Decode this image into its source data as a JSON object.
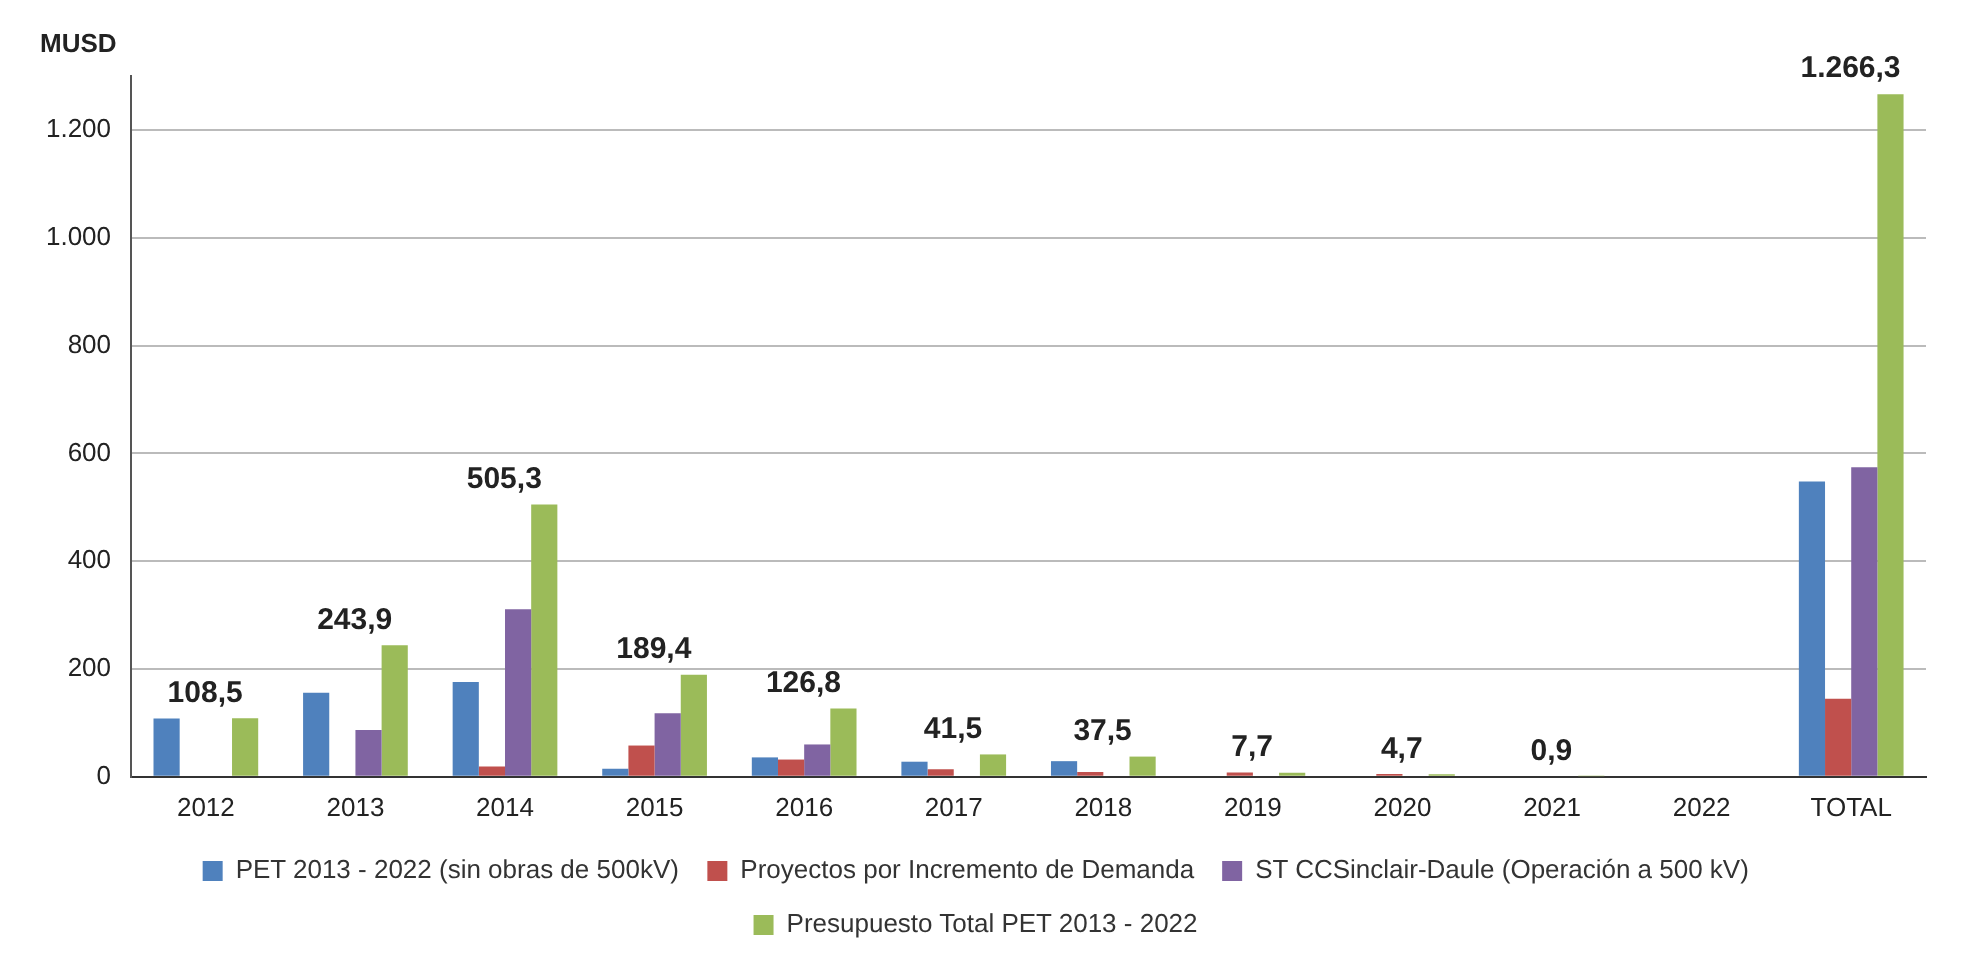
{
  "chart_data": {
    "type": "bar",
    "ylabel": "MUSD",
    "categories": [
      "2012",
      "2013",
      "2014",
      "2015",
      "2016",
      "2017",
      "2018",
      "2019",
      "2020",
      "2021",
      "2022",
      "TOTAL"
    ],
    "series": [
      {
        "name": "PET 2013 - 2022 (sin obras de 500kV)",
        "color": "#4f81bd",
        "values": [
          108,
          156,
          176,
          15,
          36,
          28,
          29,
          0,
          0,
          0,
          0,
          548
        ]
      },
      {
        "name": "Proyectos por Incremento de Demanda",
        "color": "#c0504d",
        "values": [
          0,
          0,
          19,
          58,
          32,
          14,
          9,
          8,
          5,
          null,
          0,
          145
        ]
      },
      {
        "name": "ST CCSinclair-Daule (Operación a 500 kV)",
        "color": "#8064a2",
        "values": [
          0,
          87,
          311,
          118,
          60,
          0,
          0,
          0,
          0,
          0,
          0,
          574
        ]
      },
      {
        "name": "Presupuesto Total PET 2013 - 2022",
        "color": "#9bbb59",
        "values": [
          108.5,
          243.9,
          505.3,
          189.4,
          126.8,
          41.5,
          37.5,
          7.7,
          4.7,
          0.9,
          0,
          1266.3
        ],
        "value_labels": [
          "108,5",
          "243,9",
          "505,3",
          "189,4",
          "126,8",
          "41,5",
          "37,5",
          "7,7",
          "4,7",
          "0,9",
          null,
          "1.266,3"
        ]
      }
    ],
    "ylim": [
      0,
      1300
    ],
    "yticks": [
      0,
      200,
      400,
      600,
      800,
      {
        "value": 1000,
        "label": "1.000"
      },
      {
        "value": 1200,
        "label": "1.200"
      }
    ],
    "grid": "y",
    "legend": "bottom"
  }
}
